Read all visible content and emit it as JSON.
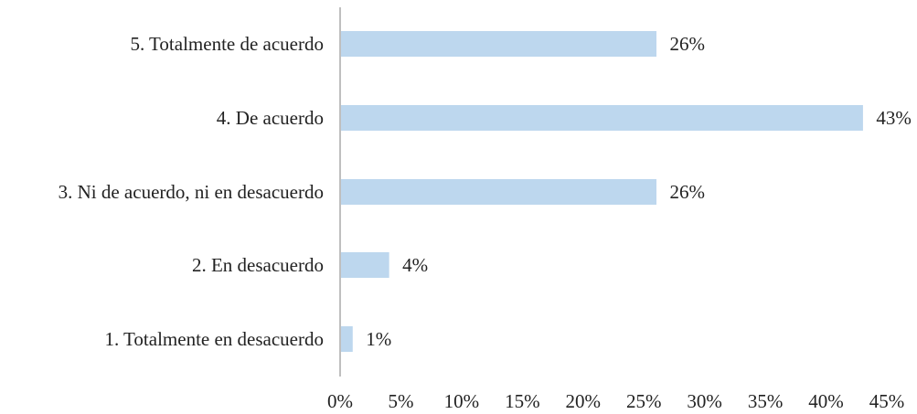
{
  "chart_data": {
    "type": "bar",
    "orientation": "horizontal",
    "title": "",
    "xlabel": "",
    "ylabel": "",
    "categories": [
      "5. Totalmente de acuerdo",
      "4. De acuerdo",
      "3. Ni de acuerdo, ni en desacuerdo",
      "2. En desacuerdo",
      "1. Totalmente en desacuerdo"
    ],
    "values": [
      26,
      43,
      26,
      4,
      1
    ],
    "value_labels": [
      "26%",
      "43%",
      "26%",
      "4%",
      "1%"
    ],
    "xlim": [
      0,
      45
    ],
    "x_ticks": [
      0,
      5,
      10,
      15,
      20,
      25,
      30,
      35,
      40,
      45
    ],
    "x_tick_labels": [
      "0%",
      "5%",
      "10%",
      "15%",
      "20%",
      "25%",
      "30%",
      "35%",
      "40%",
      "45%"
    ],
    "grid": false,
    "legend": "none",
    "bar_color": "#bdd7ee",
    "axis_color": "#bfbfbf"
  }
}
